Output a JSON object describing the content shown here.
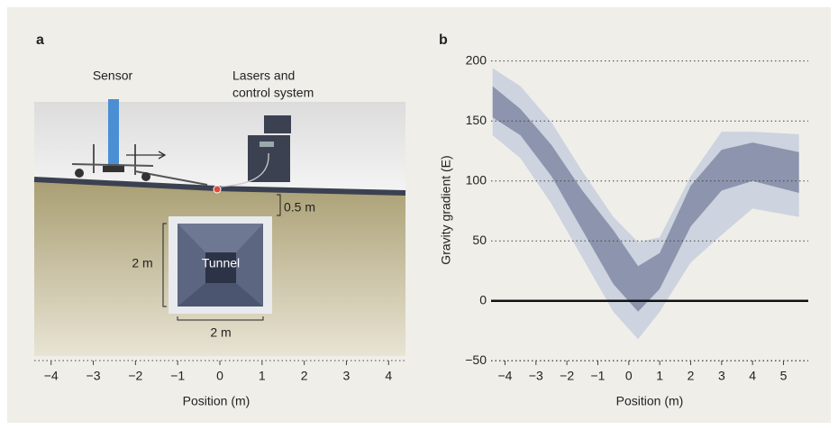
{
  "diagram": {
    "panel_label": "a",
    "sensor_label": "Sensor",
    "lasers_label": [
      "Lasers and",
      "control system"
    ],
    "depth_label": "0.5 m",
    "height_label": "2 m",
    "tunnel_label": "Tunnel",
    "width_label": "2 m",
    "x_label": "Position (m)",
    "xlim": [
      -4.4,
      4.4
    ],
    "xticks": [
      {
        "value": -4,
        "label": "−4"
      },
      {
        "value": -3,
        "label": "−3"
      },
      {
        "value": -2,
        "label": "−2"
      },
      {
        "value": -1,
        "label": "−1"
      },
      0,
      1,
      2,
      3,
      4
    ]
  },
  "chart_data": {
    "type": "band",
    "panel_label": "b",
    "y_label": "Gravity gradient (E)",
    "x_label": "Position (m)",
    "x": [
      -4.4,
      -3.5,
      -2.5,
      -1.5,
      -0.5,
      0.3,
      1,
      2,
      3,
      4,
      5.5
    ],
    "bands": [
      {
        "color": "#cdd3df",
        "upper": [
          194,
          179,
          149,
          108,
          70,
          49,
          53,
          104,
          141,
          141,
          139
        ],
        "lower": [
          138,
          119,
          81,
          36,
          -9,
          -32,
          -9,
          32,
          55,
          77,
          70
        ]
      },
      {
        "color": "#8c95ad",
        "upper": [
          179,
          160,
          130,
          92,
          59,
          29,
          40,
          96,
          126,
          132,
          124
        ],
        "lower": [
          153,
          138,
          104,
          59,
          14,
          -9,
          10,
          62,
          92,
          100,
          90
        ]
      }
    ],
    "xlim": [
      -4.45,
      5.8
    ],
    "ylim": [
      -55,
      205
    ],
    "xticks": [
      {
        "value": -4,
        "label": "−4"
      },
      {
        "value": -3,
        "label": "−3"
      },
      {
        "value": -2,
        "label": "−2"
      },
      {
        "value": -1,
        "label": "−1"
      },
      0,
      1,
      2,
      3,
      4,
      5
    ],
    "yticks": [
      {
        "value": -50,
        "label": "−50"
      },
      0,
      50,
      100,
      150,
      200
    ],
    "grid": true
  }
}
